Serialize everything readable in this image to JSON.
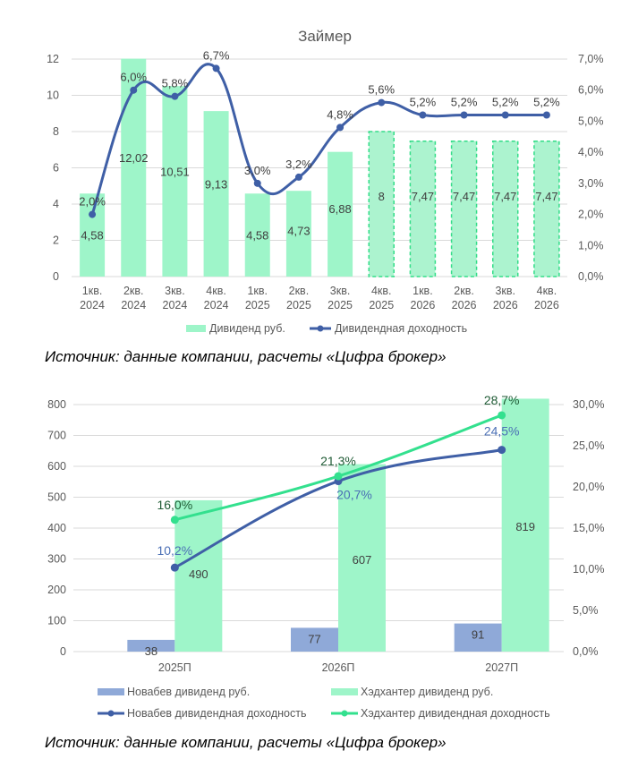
{
  "chart_data": [
    {
      "type": "bar",
      "title": "Займер",
      "categories": [
        "1кв. 2024",
        "2кв. 2024",
        "3кв. 2024",
        "4кв. 2024",
        "1кв. 2025",
        "2кв. 2025",
        "3кв. 2025",
        "4кв. 2025",
        "1кв. 2026",
        "2кв. 2026",
        "3кв. 2026",
        "4кв. 2026"
      ],
      "series": [
        {
          "name": "Дивиденд руб.",
          "type": "bar",
          "axis": "left",
          "values": [
            4.58,
            12.02,
            10.51,
            9.13,
            4.58,
            4.73,
            6.88,
            8,
            7.47,
            7.47,
            7.47,
            7.47
          ],
          "labels": [
            "4,58",
            "12,02",
            "10,51",
            "9,13",
            "4,58",
            "4,73",
            "6,88",
            "8",
            "7,47",
            "7,47",
            "7,47",
            "7,47"
          ],
          "forecast_from_index": 7,
          "color": "#9ef5c9"
        },
        {
          "name": "Дивидендная доходность",
          "type": "line",
          "axis": "right",
          "smooth": true,
          "values": [
            2.0,
            6.0,
            5.8,
            6.7,
            3.0,
            3.2,
            4.8,
            5.6,
            5.2,
            5.2,
            5.2,
            5.2
          ],
          "labels": [
            "2,0%",
            "6,0%",
            "5,8%",
            "6,7%",
            "3,0%",
            "3,2%",
            "4,8%",
            "5,6%",
            "5,2%",
            "5,2%",
            "5,2%",
            "5,2%"
          ],
          "color": "#3f5fa6"
        }
      ],
      "ylim": [
        0,
        12
      ],
      "yticks": [
        "0",
        "2",
        "4",
        "6",
        "8",
        "10",
        "12"
      ],
      "y2lim": [
        0,
        7
      ],
      "y2ticks": [
        "0,0%",
        "1,0%",
        "2,0%",
        "3,0%",
        "4,0%",
        "5,0%",
        "6,0%",
        "7,0%"
      ],
      "grid": true,
      "legend": "bottom"
    },
    {
      "type": "bar",
      "title": "",
      "categories": [
        "2025П",
        "2026П",
        "2027П"
      ],
      "series": [
        {
          "name": "Новабев дивиденд руб.",
          "type": "bar",
          "axis": "left",
          "values": [
            38,
            77,
            91
          ],
          "color": "#8fa9d8"
        },
        {
          "name": "Хэдхантер дивиденд руб.",
          "type": "bar",
          "axis": "left",
          "values": [
            490,
            607,
            819
          ],
          "color": "#9ef5c9"
        },
        {
          "name": "Новабев дивидендная доходность",
          "type": "line",
          "axis": "right",
          "smooth": true,
          "values": [
            10.2,
            20.7,
            24.5
          ],
          "labels": [
            "10,2%",
            "20,7%",
            "24,5%"
          ],
          "color": "#3f5fa6",
          "label_color": "#4a6fb5"
        },
        {
          "name": "Хэдхантер дивидендная доходность",
          "type": "line",
          "axis": "right",
          "smooth": true,
          "values": [
            16.0,
            21.3,
            28.7
          ],
          "labels": [
            "16,0%",
            "21,3%",
            "28,7%"
          ],
          "color": "#33e08e",
          "label_color": "#1f5b35"
        }
      ],
      "ylim": [
        0,
        800
      ],
      "yticks": [
        "0",
        "100",
        "200",
        "300",
        "400",
        "500",
        "600",
        "700",
        "800"
      ],
      "y2lim": [
        0,
        30
      ],
      "y2ticks": [
        "0,0%",
        "5,0%",
        "10,0%",
        "15,0%",
        "20,0%",
        "25,0%",
        "30,0%"
      ],
      "grid": true,
      "legend": "bottom"
    }
  ],
  "sources": {
    "first": "Источник: данные компании, расчеты «Цифра брокер»",
    "second": "Источник: данные компании, расчеты «Цифра брокер»"
  }
}
